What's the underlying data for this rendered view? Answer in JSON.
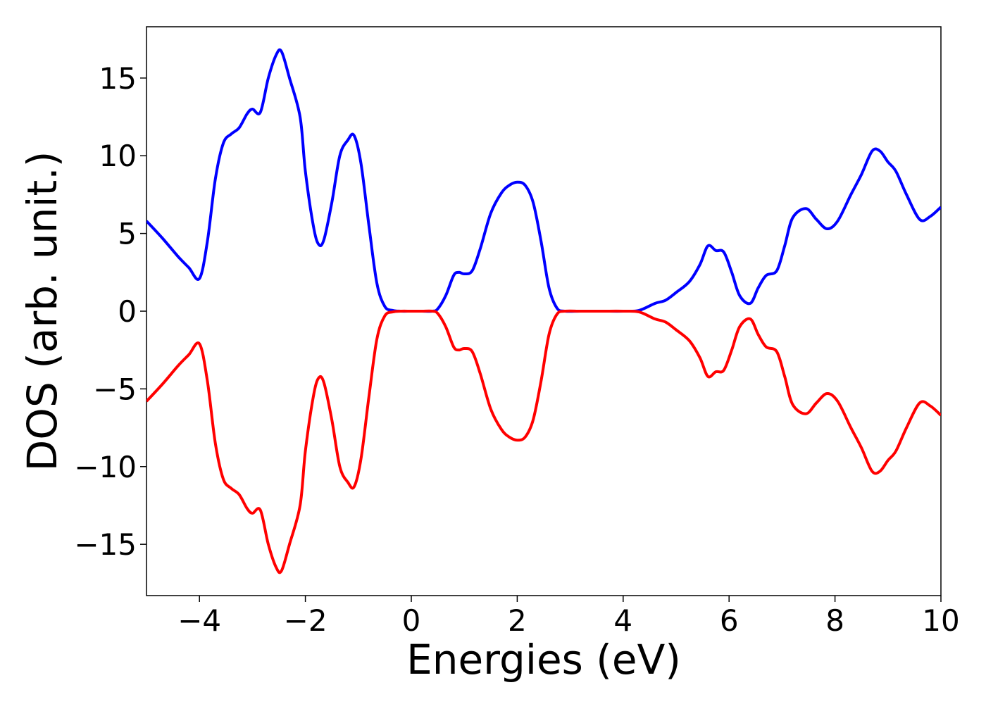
{
  "chart_data": {
    "type": "line",
    "title": "",
    "xlabel": "Energies (eV)",
    "ylabel": "DOS (arb. unit.)",
    "xlim": [
      -5,
      10
    ],
    "ylim": [
      -18.3,
      18.3
    ],
    "xticks": [
      -4,
      -2,
      0,
      2,
      4,
      6,
      8,
      10
    ],
    "xtick_labels": [
      "−4",
      "−2",
      "0",
      "2",
      "4",
      "6",
      "8",
      "10"
    ],
    "yticks": [
      15,
      10,
      5,
      0,
      -5,
      -10,
      -15
    ],
    "ytick_labels": [
      "15",
      "10",
      "5",
      "0",
      "−5",
      "−10",
      "−15"
    ],
    "grid": false,
    "legend": "none",
    "series": [
      {
        "color": "#0000ff",
        "x": [
          -5.0,
          -4.7,
          -4.4,
          -4.2,
          -4.0,
          -3.85,
          -3.7,
          -3.55,
          -3.4,
          -3.25,
          -3.1,
          -3.0,
          -2.85,
          -2.7,
          -2.55,
          -2.45,
          -2.3,
          -2.1,
          -2.0,
          -1.85,
          -1.75,
          -1.65,
          -1.5,
          -1.35,
          -1.2,
          -1.08,
          -0.95,
          -0.8,
          -0.65,
          -0.5,
          -0.35,
          -0.2,
          0.0,
          0.2,
          0.4,
          0.5,
          0.65,
          0.8,
          0.9,
          1.0,
          1.15,
          1.3,
          1.5,
          1.7,
          1.85,
          2.0,
          2.15,
          2.3,
          2.45,
          2.6,
          2.75,
          2.9,
          3.2,
          3.6,
          4.0,
          4.3,
          4.6,
          4.8,
          5.0,
          5.25,
          5.45,
          5.6,
          5.75,
          5.9,
          6.05,
          6.2,
          6.4,
          6.55,
          6.7,
          6.9,
          7.05,
          7.2,
          7.45,
          7.65,
          7.85,
          8.05,
          8.3,
          8.5,
          8.7,
          8.85,
          9.0,
          9.15,
          9.35,
          9.6,
          9.8,
          10.0
        ],
        "y": [
          5.8,
          4.7,
          3.5,
          2.8,
          2.1,
          4.5,
          8.5,
          10.8,
          11.4,
          11.8,
          12.7,
          13.0,
          12.8,
          15.0,
          16.5,
          16.7,
          15.0,
          12.5,
          9.0,
          5.5,
          4.3,
          4.6,
          7.0,
          10.0,
          11.0,
          11.3,
          9.5,
          5.5,
          1.8,
          0.3,
          0.05,
          0.0,
          0.0,
          0.0,
          0.0,
          0.15,
          1.0,
          2.3,
          2.5,
          2.4,
          2.6,
          4.0,
          6.3,
          7.6,
          8.1,
          8.3,
          8.1,
          7.0,
          4.5,
          1.5,
          0.2,
          0.0,
          0.0,
          0.0,
          0.0,
          0.05,
          0.5,
          0.7,
          1.2,
          1.9,
          3.0,
          4.2,
          3.9,
          3.8,
          2.5,
          1.0,
          0.5,
          1.5,
          2.3,
          2.6,
          4.2,
          6.0,
          6.6,
          5.9,
          5.3,
          5.8,
          7.5,
          8.8,
          10.3,
          10.3,
          9.6,
          9.0,
          7.5,
          5.9,
          6.1,
          6.7
        ]
      },
      {
        "color": "#ff0000",
        "x": [
          -5.0,
          -4.7,
          -4.4,
          -4.2,
          -4.0,
          -3.85,
          -3.7,
          -3.55,
          -3.4,
          -3.25,
          -3.1,
          -3.0,
          -2.85,
          -2.7,
          -2.55,
          -2.45,
          -2.3,
          -2.1,
          -2.0,
          -1.85,
          -1.75,
          -1.65,
          -1.5,
          -1.35,
          -1.2,
          -1.08,
          -0.95,
          -0.8,
          -0.65,
          -0.5,
          -0.35,
          -0.2,
          0.0,
          0.2,
          0.4,
          0.5,
          0.65,
          0.8,
          0.9,
          1.0,
          1.15,
          1.3,
          1.5,
          1.7,
          1.85,
          2.0,
          2.15,
          2.3,
          2.45,
          2.6,
          2.75,
          2.9,
          3.2,
          3.6,
          4.0,
          4.3,
          4.6,
          4.8,
          5.0,
          5.25,
          5.45,
          5.6,
          5.75,
          5.9,
          6.05,
          6.2,
          6.4,
          6.55,
          6.7,
          6.9,
          7.05,
          7.2,
          7.45,
          7.65,
          7.85,
          8.05,
          8.3,
          8.5,
          8.7,
          8.85,
          9.0,
          9.15,
          9.35,
          9.6,
          9.8,
          10.0
        ],
        "y": [
          -5.8,
          -4.7,
          -3.5,
          -2.8,
          -2.1,
          -4.5,
          -8.5,
          -10.8,
          -11.4,
          -11.8,
          -12.7,
          -13.0,
          -12.8,
          -15.0,
          -16.5,
          -16.7,
          -15.0,
          -12.5,
          -9.0,
          -5.5,
          -4.3,
          -4.6,
          -7.0,
          -10.0,
          -11.0,
          -11.3,
          -9.5,
          -5.5,
          -1.8,
          -0.3,
          -0.05,
          0.0,
          0.0,
          0.0,
          0.0,
          -0.15,
          -1.0,
          -2.3,
          -2.5,
          -2.4,
          -2.6,
          -4.0,
          -6.3,
          -7.6,
          -8.1,
          -8.3,
          -8.1,
          -7.0,
          -4.5,
          -1.5,
          -0.2,
          0.0,
          0.0,
          0.0,
          0.0,
          -0.05,
          -0.5,
          -0.7,
          -1.2,
          -1.9,
          -3.0,
          -4.2,
          -3.9,
          -3.8,
          -2.5,
          -1.0,
          -0.5,
          -1.5,
          -2.3,
          -2.6,
          -4.2,
          -6.0,
          -6.6,
          -5.9,
          -5.3,
          -5.8,
          -7.5,
          -8.8,
          -10.3,
          -10.3,
          -9.6,
          -9.0,
          -7.5,
          -5.9,
          -6.1,
          -6.7
        ]
      }
    ]
  }
}
